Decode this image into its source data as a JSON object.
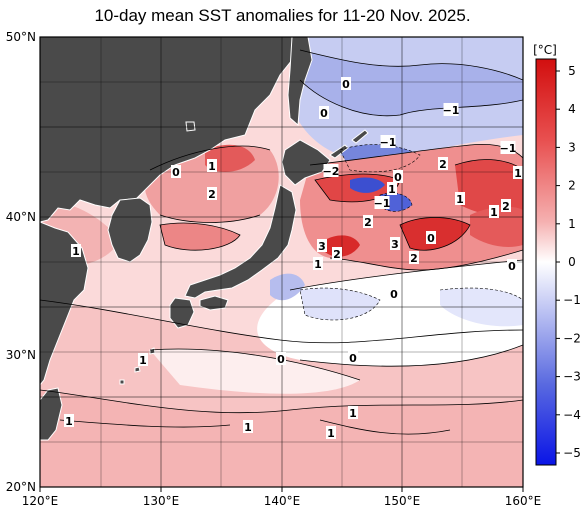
{
  "title": "10-day mean SST anomalies for 11-20 Nov. 2025.",
  "axes": {
    "x_ticks": [
      "120°E",
      "130°E",
      "140°E",
      "150°E",
      "160°E"
    ],
    "y_ticks": [
      "50°N",
      "40°N",
      "30°N",
      "20°N"
    ]
  },
  "colorbar": {
    "unit": "[°C]",
    "ticks": [
      "5",
      "4",
      "3",
      "2",
      "1",
      "0",
      "−1",
      "−2",
      "−3",
      "−4",
      "−5"
    ],
    "warm_color": "#d81818",
    "cold_color": "#1010e0",
    "land_color": "#4a4a4a"
  },
  "contour_labels": [
    {
      "text": "0"
    },
    {
      "text": "0"
    },
    {
      "text": "−1"
    },
    {
      "text": "−1"
    },
    {
      "text": "−1"
    },
    {
      "text": "−2"
    },
    {
      "text": "2"
    },
    {
      "text": "1"
    },
    {
      "text": "1"
    },
    {
      "text": "2"
    },
    {
      "text": "0"
    },
    {
      "text": "1"
    },
    {
      "text": "0"
    },
    {
      "text": "−1"
    },
    {
      "text": "1"
    },
    {
      "text": "2"
    },
    {
      "text": "2"
    },
    {
      "text": "1"
    },
    {
      "text": "3"
    },
    {
      "text": "2"
    },
    {
      "text": "1"
    },
    {
      "text": "3"
    },
    {
      "text": "0"
    },
    {
      "text": "2"
    },
    {
      "text": "0"
    },
    {
      "text": "1"
    },
    {
      "text": "0"
    },
    {
      "text": "1"
    },
    {
      "text": "0"
    },
    {
      "text": "0"
    },
    {
      "text": "1"
    },
    {
      "text": "1"
    },
    {
      "text": "1"
    },
    {
      "text": "1"
    }
  ]
}
